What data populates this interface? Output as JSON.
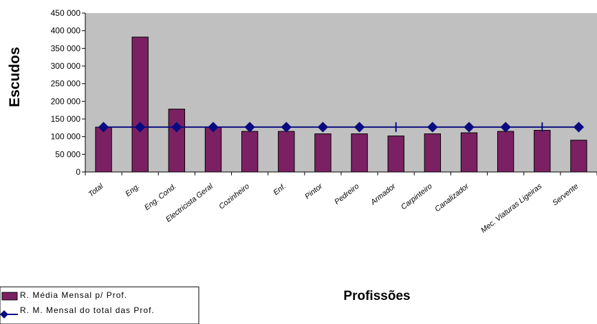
{
  "chart_data": {
    "type": "bar",
    "title": "",
    "xlabel": "Profissões",
    "ylabel": "Escudos",
    "ylim": [
      0,
      450000
    ],
    "yticks": [
      0,
      50000,
      100000,
      150000,
      200000,
      250000,
      300000,
      350000,
      400000,
      450000
    ],
    "ytick_labels": [
      "0",
      "50 000",
      "100 000",
      "150 000",
      "200 000",
      "250 000",
      "300 000",
      "350 000",
      "400 000",
      "450 000"
    ],
    "grid": false,
    "plot_background": "#c0c0c0",
    "legend_position": "bottom-left",
    "categories": [
      "Total",
      "Eng.",
      "Eng. Cond.",
      "Electricista Geral",
      "Cozinheiro",
      "Enf. ",
      "Pintor",
      "Pedreiro",
      "Armador",
      "Carpinteiro",
      "Canalizador",
      " ",
      "Mec. Viaturas Ligeiras",
      "Servente"
    ],
    "category_labels": [
      "Total",
      "Eng.",
      "Eng. Cond.",
      "Electricista Geral",
      "Cozinheiro",
      "Enf. ",
      "Pintor",
      "Pedreiro",
      "Armador",
      "Carpinteiro",
      "Canalizador",
      " ",
      "Mec. Viaturas Ligeiras",
      "Servente"
    ],
    "series": [
      {
        "name": "R. Média Mensal p/ Prof.",
        "type": "bar",
        "color": "#7b2163",
        "values": [
          127000,
          382000,
          178000,
          127000,
          115000,
          115000,
          108000,
          108000,
          102000,
          108000,
          111000,
          115000,
          118000,
          90000
        ]
      },
      {
        "name": "R. M. Mensal do total das Prof.",
        "type": "line",
        "color": "#0a0a80",
        "marker": "diamond",
        "marker_skip_index": 8,
        "marker_skip_index_2": 12,
        "values": [
          127000,
          127000,
          127000,
          127000,
          127000,
          127000,
          127000,
          127000,
          127000,
          127000,
          127000,
          127000,
          127000,
          127000
        ]
      }
    ]
  }
}
